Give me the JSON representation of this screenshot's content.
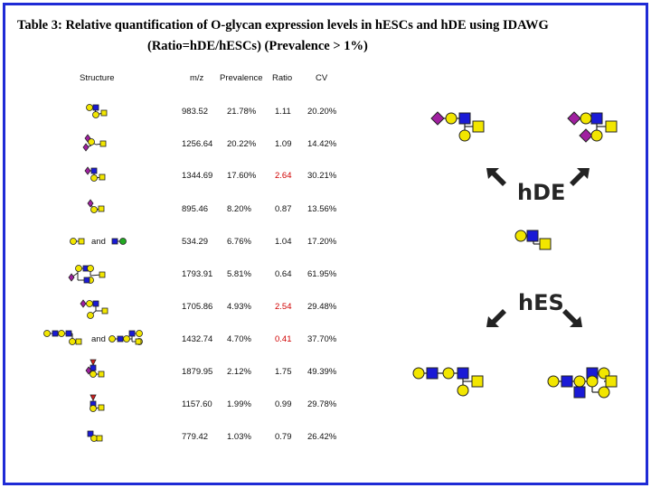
{
  "title": {
    "line1": "Table 3: Relative quantification of O-glycan expression levels in hESCs and hDE using IDAWG",
    "line2": "(Ratio=hDE/hESCs) (Prevalence > 1%)"
  },
  "columns": {
    "structure": "Structure",
    "mz": "m/z",
    "prevalence": "Prevalence",
    "ratio": "Ratio",
    "cv": "CV"
  },
  "rows": [
    {
      "mz": "983.52",
      "prevalence": "21.78%",
      "ratio": "1.11",
      "cv": "20.20%",
      "highlight": false
    },
    {
      "mz": "1256.64",
      "prevalence": "20.22%",
      "ratio": "1.09",
      "cv": "14.42%",
      "highlight": false
    },
    {
      "mz": "1344.69",
      "prevalence": "17.60%",
      "ratio": "2.64",
      "cv": "30.21%",
      "highlight": true
    },
    {
      "mz": "895.46",
      "prevalence": "8.20%",
      "ratio": "0.87",
      "cv": "13.56%",
      "highlight": false
    },
    {
      "mz": "534.29",
      "prevalence": "6.76%",
      "ratio": "1.04",
      "cv": "17.20%",
      "highlight": false
    },
    {
      "mz": "1793.91",
      "prevalence": "5.81%",
      "ratio": "0.64",
      "cv": "61.95%",
      "highlight": false
    },
    {
      "mz": "1705.86",
      "prevalence": "4.93%",
      "ratio": "2.54",
      "cv": "29.48%",
      "highlight": true
    },
    {
      "mz": "1432.74",
      "prevalence": "4.70%",
      "ratio": "0.41",
      "cv": "37.70%",
      "highlight": true
    },
    {
      "mz": "1879.95",
      "prevalence": "2.12%",
      "ratio": "1.75",
      "cv": "49.39%",
      "highlight": false
    },
    {
      "mz": "1157.60",
      "prevalence": "1.99%",
      "ratio": "0.99",
      "cv": "29.78%",
      "highlight": false
    },
    {
      "mz": "779.42",
      "prevalence": "1.03%",
      "ratio": "0.79",
      "cv": "26.42%",
      "highlight": false
    }
  ],
  "and_word": "and",
  "diagram": {
    "hde_label": "hDE",
    "hes_label": "hES"
  },
  "colors": {
    "frame": "#1f2bd6",
    "galactose": "#f2e600",
    "galnac": "#f2e600",
    "glcnac": "#1a1ad6",
    "sialic": "#a020a0",
    "fucose": "#d02020",
    "hexose_green": "#22aa22",
    "ratio_highlight": "#d00000"
  }
}
